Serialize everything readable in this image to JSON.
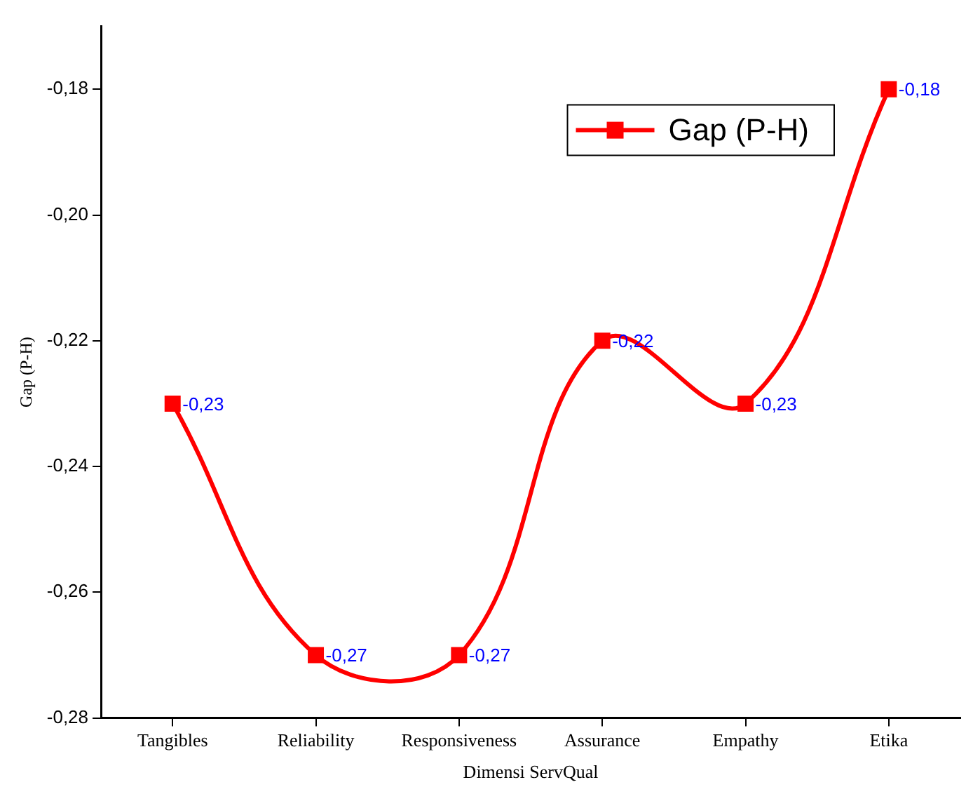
{
  "chart_data": {
    "type": "line",
    "xlabel": "Dimensi ServQual",
    "ylabel": "Gap (P-H)",
    "categories": [
      "Tangibles",
      "Reliability",
      "Responsiveness",
      "Assurance",
      "Empathy",
      "Etika"
    ],
    "series": [
      {
        "name": "Gap (P-H)",
        "color": "#ff0000",
        "values": [
          -0.23,
          -0.27,
          -0.27,
          -0.22,
          -0.23,
          -0.18
        ],
        "value_labels": [
          "-0,23",
          "-0,27",
          "-0,27",
          "-0,22",
          "-0,23",
          "-0,18"
        ]
      }
    ],
    "ylim": [
      -0.28,
      -0.17
    ],
    "yticks": [
      {
        "value": -0.28,
        "label": "-0,28"
      },
      {
        "value": -0.26,
        "label": "-0,26"
      },
      {
        "value": -0.24,
        "label": "-0,24"
      },
      {
        "value": -0.22,
        "label": "-0,22"
      },
      {
        "value": -0.2,
        "label": "-0,20"
      },
      {
        "value": -0.18,
        "label": "-0,18"
      }
    ],
    "grid": false,
    "legend": "top right",
    "marker": "square",
    "line_style": "solid"
  }
}
